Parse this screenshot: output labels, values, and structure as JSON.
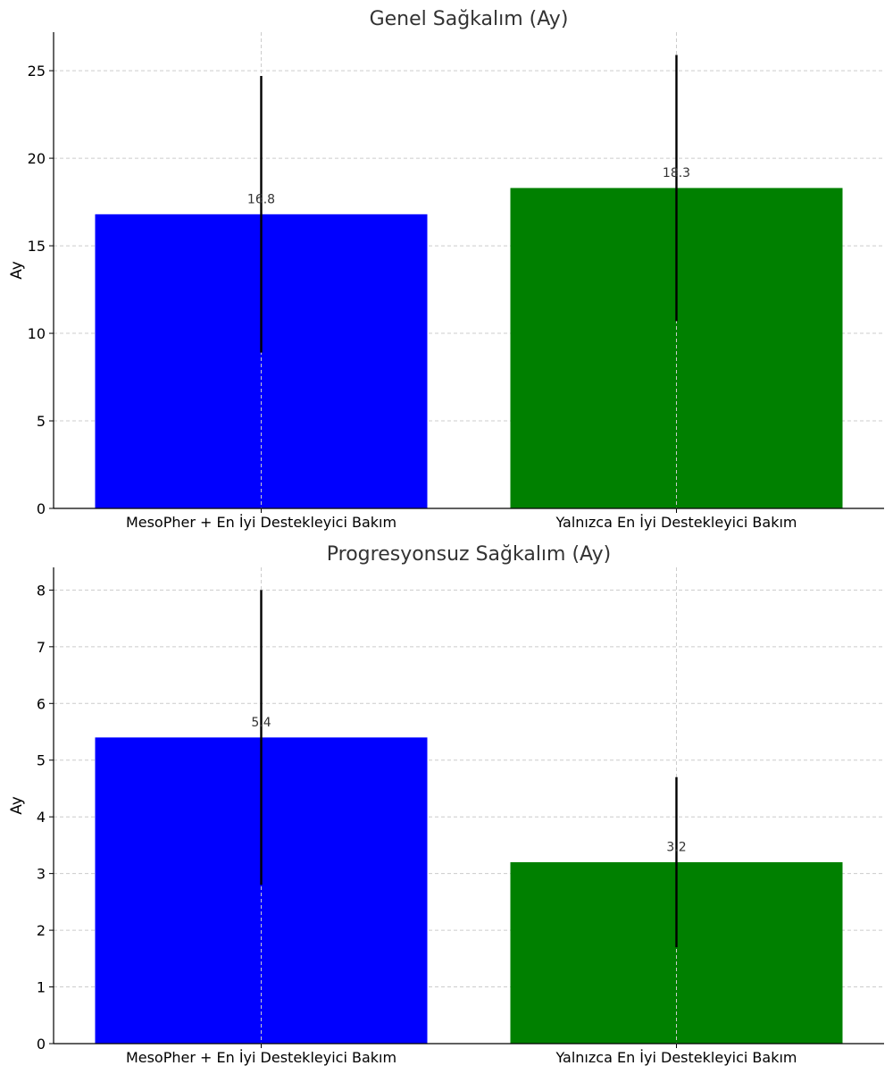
{
  "chart_data": [
    {
      "type": "bar",
      "title": "Genel Sağkalım (Ay)",
      "xlabel": "",
      "ylabel": "Ay",
      "ylim": [
        0,
        27.2
      ],
      "yticks": [
        0,
        5,
        10,
        15,
        20,
        25
      ],
      "grid": true,
      "categories": [
        "MesoPher + En İyi Destekleyici Bakım",
        "Yalnızca En İyi Destekleyici Bakım"
      ],
      "values": [
        16.8,
        18.3
      ],
      "value_labels": [
        "16.8",
        "18.3"
      ],
      "error_low": [
        8.9,
        10.7
      ],
      "error_high": [
        24.7,
        25.9
      ],
      "colors": [
        "#0000ff",
        "#008000"
      ]
    },
    {
      "type": "bar",
      "title": "Progresyonsuz Sağkalım (Ay)",
      "xlabel": "",
      "ylabel": "Ay",
      "ylim": [
        0,
        8.4
      ],
      "yticks": [
        0,
        1,
        2,
        3,
        4,
        5,
        6,
        7,
        8
      ],
      "grid": true,
      "categories": [
        "MesoPher + En İyi Destekleyici Bakım",
        "Yalnızca En İyi Destekleyici Bakım"
      ],
      "values": [
        5.4,
        3.2
      ],
      "value_labels": [
        "5.4",
        "3.2"
      ],
      "error_low": [
        2.8,
        1.7
      ],
      "error_high": [
        8.0,
        4.7
      ],
      "colors": [
        "#0000ff",
        "#008000"
      ]
    }
  ]
}
